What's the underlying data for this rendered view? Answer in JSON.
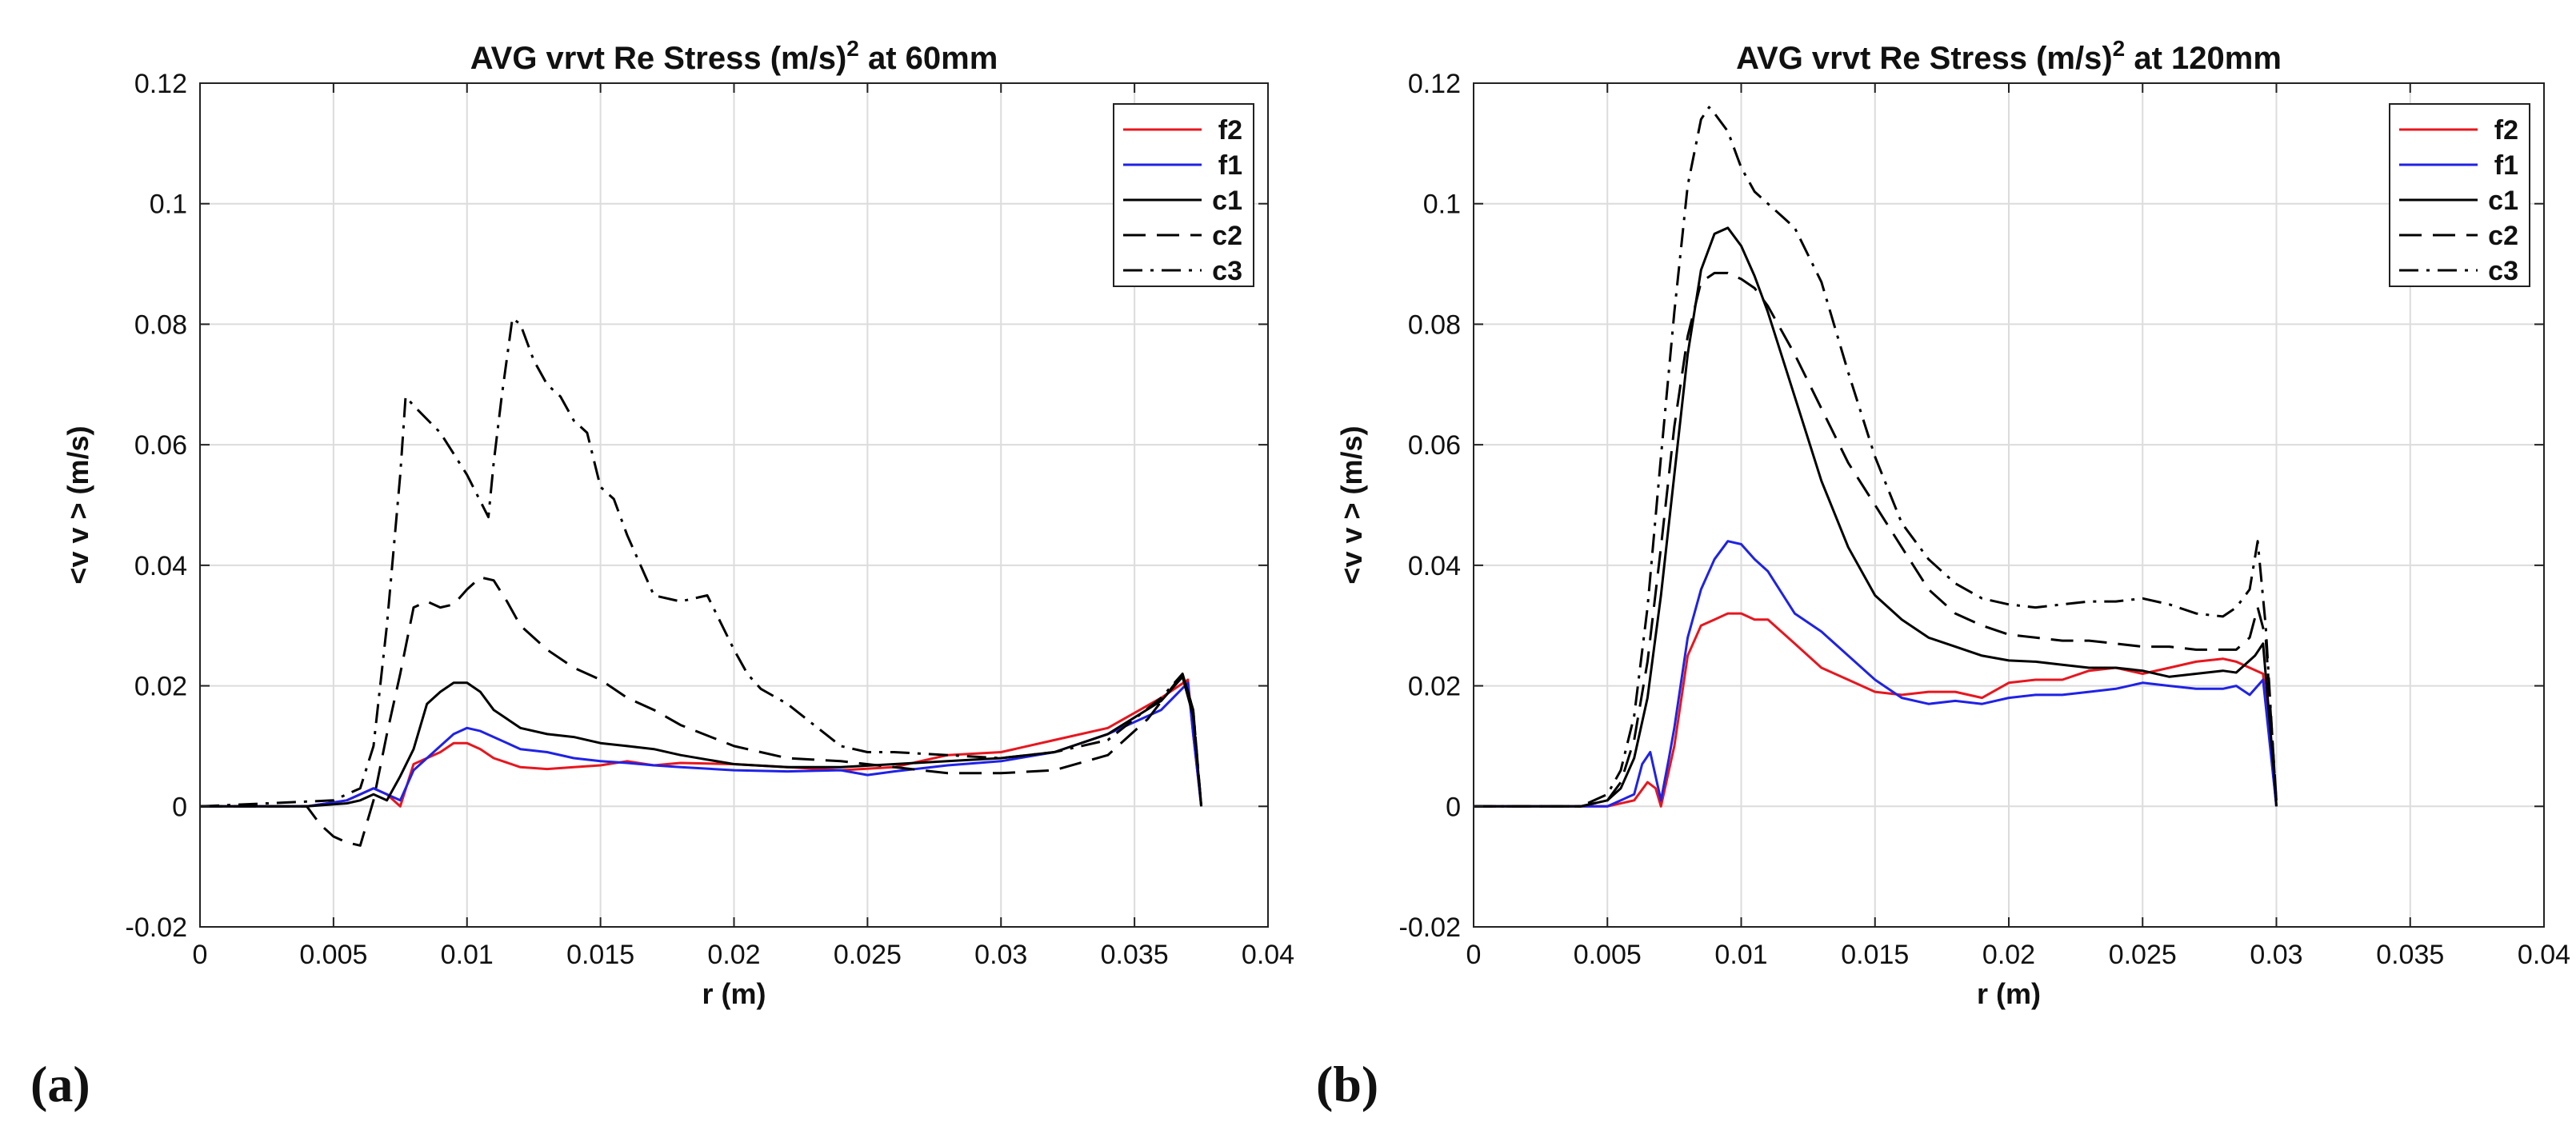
{
  "chart_data": [
    {
      "type": "line",
      "panel_label": "(a)",
      "title": "AVG vrvt Re Stress (m/s)",
      "title_sup": "2",
      "title_suffix": " at 60mm",
      "xlabel": "r (m)",
      "ylabel": "<v v > (m/s)",
      "xlim": [
        0,
        0.04
      ],
      "ylim": [
        -0.02,
        0.12
      ],
      "xticks": [
        "0",
        "0.005",
        "0.01",
        "0.015",
        "0.02",
        "0.025",
        "0.03",
        "0.035",
        "0.04"
      ],
      "yticks": [
        "-0.02",
        "0",
        "0.02",
        "0.04",
        "0.06",
        "0.08",
        "0.1",
        "0.12"
      ],
      "grid": true,
      "legend_position": "top-right",
      "series": [
        {
          "name": "f2",
          "color": "#e8161e",
          "dash": "solid",
          "x": [
            0,
            0.004,
            0.0055,
            0.006,
            0.0065,
            0.007,
            0.0075,
            0.008,
            0.0085,
            0.009,
            0.0095,
            0.01,
            0.0105,
            0.011,
            0.012,
            0.013,
            0.014,
            0.015,
            0.016,
            0.017,
            0.018,
            0.02,
            0.022,
            0.024,
            0.026,
            0.028,
            0.03,
            0.032,
            0.034,
            0.036,
            0.037,
            0.0372,
            0.0375
          ],
          "y": [
            0,
            0,
            0.001,
            0.002,
            0.003,
            0.002,
            0,
            0.007,
            0.008,
            0.009,
            0.0105,
            0.0105,
            0.0095,
            0.008,
            0.0065,
            0.0062,
            0.0065,
            0.0068,
            0.0075,
            0.0068,
            0.0072,
            0.007,
            0.0065,
            0.006,
            0.0065,
            0.0085,
            0.009,
            0.011,
            0.013,
            0.018,
            0.021,
            0.012,
            0
          ]
        },
        {
          "name": "f1",
          "color": "#1f22e6",
          "dash": "solid",
          "x": [
            0,
            0.004,
            0.0055,
            0.006,
            0.0065,
            0.007,
            0.0075,
            0.008,
            0.0085,
            0.009,
            0.0095,
            0.01,
            0.0105,
            0.011,
            0.012,
            0.013,
            0.014,
            0.015,
            0.016,
            0.017,
            0.018,
            0.02,
            0.022,
            0.024,
            0.025,
            0.026,
            0.028,
            0.03,
            0.032,
            0.034,
            0.036,
            0.037,
            0.0372,
            0.0375
          ],
          "y": [
            0,
            0,
            0.001,
            0.002,
            0.003,
            0.002,
            0.001,
            0.006,
            0.008,
            0.01,
            0.012,
            0.013,
            0.0125,
            0.0115,
            0.0095,
            0.009,
            0.008,
            0.0075,
            0.0072,
            0.0068,
            0.0065,
            0.006,
            0.0058,
            0.006,
            0.0052,
            0.0058,
            0.0068,
            0.0075,
            0.009,
            0.012,
            0.016,
            0.0205,
            0.012,
            0
          ]
        },
        {
          "name": "c1",
          "color": "#000000",
          "dash": "solid",
          "x": [
            0,
            0.004,
            0.0055,
            0.006,
            0.0065,
            0.007,
            0.0075,
            0.008,
            0.0085,
            0.009,
            0.0095,
            0.01,
            0.0105,
            0.011,
            0.012,
            0.013,
            0.014,
            0.015,
            0.016,
            0.017,
            0.018,
            0.02,
            0.022,
            0.024,
            0.026,
            0.028,
            0.03,
            0.032,
            0.034,
            0.036,
            0.0368,
            0.0372,
            0.0375
          ],
          "y": [
            0,
            0,
            0.0005,
            0.001,
            0.002,
            0.001,
            0.005,
            0.0095,
            0.017,
            0.019,
            0.0205,
            0.0205,
            0.019,
            0.016,
            0.013,
            0.012,
            0.0115,
            0.0105,
            0.01,
            0.0095,
            0.0085,
            0.007,
            0.0065,
            0.0065,
            0.007,
            0.0075,
            0.008,
            0.009,
            0.012,
            0.0175,
            0.0215,
            0.015,
            0
          ]
        },
        {
          "name": "c2",
          "color": "#000000",
          "dash": "dashed",
          "x": [
            0,
            0.004,
            0.0045,
            0.005,
            0.0055,
            0.006,
            0.0065,
            0.007,
            0.0075,
            0.008,
            0.0085,
            0.009,
            0.0095,
            0.01,
            0.0105,
            0.011,
            0.0115,
            0.012,
            0.013,
            0.014,
            0.015,
            0.016,
            0.017,
            0.018,
            0.02,
            0.022,
            0.024,
            0.026,
            0.028,
            0.03,
            0.032,
            0.034,
            0.0355,
            0.0368,
            0.0372,
            0.0375
          ],
          "y": [
            0,
            0,
            -0.003,
            -0.005,
            -0.006,
            -0.0065,
            0.001,
            0.012,
            0.022,
            0.033,
            0.034,
            0.033,
            0.0335,
            0.036,
            0.038,
            0.0375,
            0.034,
            0.03,
            0.026,
            0.023,
            0.021,
            0.018,
            0.016,
            0.0135,
            0.01,
            0.008,
            0.0075,
            0.0065,
            0.0055,
            0.0055,
            0.006,
            0.0085,
            0.0145,
            0.022,
            0.016,
            0
          ]
        },
        {
          "name": "c3",
          "color": "#000000",
          "dash": "dashdot",
          "x": [
            0,
            0.005,
            0.006,
            0.0065,
            0.007,
            0.0075,
            0.0077,
            0.008,
            0.009,
            0.01,
            0.0108,
            0.011,
            0.0113,
            0.0117,
            0.012,
            0.0125,
            0.013,
            0.0135,
            0.014,
            0.0145,
            0.015,
            0.0155,
            0.016,
            0.0165,
            0.017,
            0.018,
            0.019,
            0.02,
            0.0205,
            0.021,
            0.022,
            0.023,
            0.024,
            0.025,
            0.026,
            0.028,
            0.03,
            0.032,
            0.034,
            0.036,
            0.0368,
            0.0372,
            0.0375
          ],
          "y": [
            0,
            0.001,
            0.003,
            0.01,
            0.03,
            0.055,
            0.068,
            0.0665,
            0.062,
            0.055,
            0.048,
            0.057,
            0.068,
            0.081,
            0.08,
            0.074,
            0.07,
            0.068,
            0.064,
            0.062,
            0.053,
            0.051,
            0.045,
            0.04,
            0.035,
            0.034,
            0.035,
            0.026,
            0.022,
            0.0195,
            0.017,
            0.0135,
            0.01,
            0.009,
            0.009,
            0.0085,
            0.008,
            0.009,
            0.011,
            0.018,
            0.022,
            0.016,
            0
          ]
        }
      ],
      "legend": [
        "f2",
        "f1",
        "c1",
        "c2",
        "c3"
      ]
    },
    {
      "type": "line",
      "panel_label": "(b)",
      "title": "AVG vrvt Re Stress (m/s)",
      "title_sup": "2",
      "title_suffix": " at 120mm",
      "xlabel": "r (m)",
      "ylabel": "<v v > (m/s)",
      "xlim": [
        0,
        0.04
      ],
      "ylim": [
        -0.02,
        0.12
      ],
      "xticks": [
        "0",
        "0.005",
        "0.01",
        "0.015",
        "0.02",
        "0.025",
        "0.03",
        "0.035",
        "0.04"
      ],
      "yticks": [
        "-0.02",
        "0",
        "0.02",
        "0.04",
        "0.06",
        "0.08",
        "0.1",
        "0.12"
      ],
      "grid": true,
      "legend_position": "top-right",
      "series": [
        {
          "name": "f2",
          "color": "#e8161e",
          "dash": "solid",
          "x": [
            0,
            0.005,
            0.006,
            0.0065,
            0.0068,
            0.007,
            0.0073,
            0.0075,
            0.008,
            0.0085,
            0.009,
            0.0095,
            0.01,
            0.0105,
            0.011,
            0.012,
            0.013,
            0.014,
            0.015,
            0.016,
            0.017,
            0.018,
            0.019,
            0.02,
            0.021,
            0.022,
            0.023,
            0.024,
            0.025,
            0.026,
            0.027,
            0.028,
            0.0285,
            0.029,
            0.0295,
            0.03
          ],
          "y": [
            0,
            0,
            0.001,
            0.004,
            0.003,
            0,
            0.006,
            0.01,
            0.025,
            0.03,
            0.031,
            0.032,
            0.032,
            0.031,
            0.031,
            0.027,
            0.023,
            0.021,
            0.019,
            0.0185,
            0.019,
            0.019,
            0.018,
            0.0205,
            0.021,
            0.021,
            0.0225,
            0.023,
            0.022,
            0.023,
            0.024,
            0.0245,
            0.024,
            0.023,
            0.022,
            0
          ]
        },
        {
          "name": "f1",
          "color": "#1f22e6",
          "dash": "solid",
          "x": [
            0,
            0.005,
            0.006,
            0.0063,
            0.0066,
            0.007,
            0.0073,
            0.0075,
            0.008,
            0.0085,
            0.009,
            0.0095,
            0.01,
            0.0105,
            0.011,
            0.012,
            0.013,
            0.014,
            0.015,
            0.016,
            0.017,
            0.018,
            0.019,
            0.02,
            0.021,
            0.022,
            0.023,
            0.024,
            0.025,
            0.026,
            0.027,
            0.028,
            0.0285,
            0.029,
            0.0295,
            0.03
          ],
          "y": [
            0,
            0,
            0.002,
            0.007,
            0.009,
            0.001,
            0.008,
            0.013,
            0.028,
            0.036,
            0.041,
            0.044,
            0.0435,
            0.041,
            0.039,
            0.032,
            0.029,
            0.025,
            0.021,
            0.018,
            0.017,
            0.0175,
            0.017,
            0.018,
            0.0185,
            0.0185,
            0.019,
            0.0195,
            0.0205,
            0.02,
            0.0195,
            0.0195,
            0.02,
            0.0185,
            0.021,
            0
          ]
        },
        {
          "name": "c1",
          "color": "#000000",
          "dash": "solid",
          "x": [
            0,
            0.004,
            0.005,
            0.0055,
            0.006,
            0.0065,
            0.007,
            0.0075,
            0.008,
            0.0085,
            0.009,
            0.0095,
            0.01,
            0.0105,
            0.011,
            0.012,
            0.013,
            0.014,
            0.015,
            0.016,
            0.017,
            0.018,
            0.019,
            0.02,
            0.021,
            0.022,
            0.023,
            0.024,
            0.025,
            0.026,
            0.027,
            0.028,
            0.0285,
            0.0292,
            0.0295,
            0.03
          ],
          "y": [
            0,
            0,
            0.001,
            0.003,
            0.008,
            0.018,
            0.035,
            0.055,
            0.075,
            0.089,
            0.095,
            0.096,
            0.093,
            0.088,
            0.082,
            0.068,
            0.054,
            0.043,
            0.035,
            0.031,
            0.028,
            0.0265,
            0.025,
            0.0242,
            0.024,
            0.0235,
            0.023,
            0.023,
            0.0225,
            0.0215,
            0.022,
            0.0225,
            0.0222,
            0.025,
            0.027,
            0.001
          ]
        },
        {
          "name": "c2",
          "color": "#000000",
          "dash": "dashed",
          "x": [
            0,
            0.004,
            0.005,
            0.0055,
            0.006,
            0.0065,
            0.007,
            0.0075,
            0.008,
            0.0085,
            0.009,
            0.0095,
            0.01,
            0.0105,
            0.011,
            0.012,
            0.013,
            0.014,
            0.015,
            0.016,
            0.017,
            0.018,
            0.019,
            0.02,
            0.021,
            0.022,
            0.023,
            0.024,
            0.025,
            0.026,
            0.027,
            0.028,
            0.0285,
            0.029,
            0.0293,
            0.0296,
            0.03
          ],
          "y": [
            0,
            0,
            0.001,
            0.004,
            0.011,
            0.024,
            0.043,
            0.063,
            0.078,
            0.087,
            0.0885,
            0.0885,
            0.0875,
            0.086,
            0.083,
            0.075,
            0.066,
            0.057,
            0.05,
            0.043,
            0.036,
            0.032,
            0.03,
            0.0285,
            0.028,
            0.0275,
            0.0275,
            0.027,
            0.0265,
            0.0265,
            0.026,
            0.026,
            0.026,
            0.028,
            0.033,
            0.028,
            0.001
          ]
        },
        {
          "name": "c3",
          "color": "#000000",
          "dash": "dashdot",
          "x": [
            0,
            0.004,
            0.005,
            0.0055,
            0.006,
            0.0065,
            0.007,
            0.0075,
            0.008,
            0.0085,
            0.0088,
            0.009,
            0.0095,
            0.01,
            0.0105,
            0.011,
            0.0115,
            0.012,
            0.013,
            0.014,
            0.015,
            0.016,
            0.017,
            0.018,
            0.019,
            0.02,
            0.021,
            0.022,
            0.023,
            0.024,
            0.025,
            0.026,
            0.027,
            0.028,
            0.0285,
            0.029,
            0.0293,
            0.0296,
            0.03
          ],
          "y": [
            0,
            0,
            0.002,
            0.006,
            0.015,
            0.033,
            0.058,
            0.082,
            0.103,
            0.114,
            0.116,
            0.115,
            0.112,
            0.106,
            0.102,
            0.1,
            0.098,
            0.096,
            0.087,
            0.072,
            0.058,
            0.047,
            0.041,
            0.037,
            0.0345,
            0.0335,
            0.033,
            0.0335,
            0.034,
            0.034,
            0.0345,
            0.0335,
            0.032,
            0.0315,
            0.033,
            0.036,
            0.044,
            0.03,
            0
          ]
        }
      ],
      "legend": [
        "f2",
        "f1",
        "c1",
        "c2",
        "c3"
      ]
    }
  ]
}
